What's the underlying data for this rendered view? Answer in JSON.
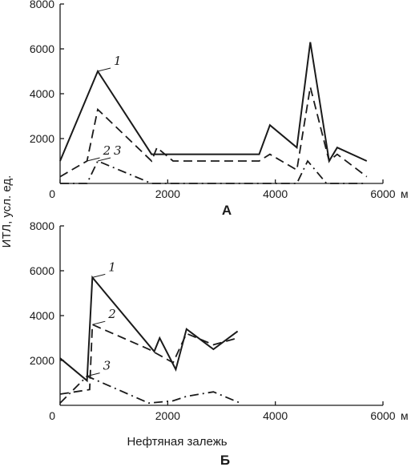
{
  "chart_data": [
    {
      "type": "line",
      "panel_label": "А",
      "ylabel": "ИТЛ, усл. ед.",
      "x_unit": "м",
      "xlim": [
        0,
        6000
      ],
      "ylim": [
        0,
        8000
      ],
      "x_ticks": [
        0,
        2000,
        4000,
        6000
      ],
      "y_ticks": [
        2000,
        4000,
        6000,
        8000
      ],
      "grid": false,
      "series": [
        {
          "name": "1",
          "style": "solid",
          "x": [
            0,
            700,
            1700,
            2100,
            3700,
            3900,
            4400,
            4650,
            5000,
            5150,
            5700
          ],
          "y": [
            1000,
            5000,
            1300,
            1300,
            1300,
            2600,
            1600,
            6300,
            1000,
            1600,
            1000
          ]
        },
        {
          "name": "2",
          "style": "dashed",
          "x": [
            0,
            500,
            700,
            1700,
            1800,
            2100,
            3700,
            3900,
            4400,
            4650,
            5000,
            5150,
            5700
          ],
          "y": [
            300,
            1000,
            3300,
            1000,
            1600,
            1000,
            1000,
            1300,
            600,
            4300,
            1000,
            1300,
            300
          ]
        },
        {
          "name": "3",
          "style": "dashdot",
          "x": [
            0,
            500,
            700,
            1700,
            4400,
            4600,
            4950,
            5700
          ],
          "y": [
            0,
            0,
            1000,
            0,
            0,
            1000,
            0,
            0
          ]
        }
      ]
    },
    {
      "type": "line",
      "panel_label": "Б",
      "xlabel": "Нефтяная залежь",
      "x_unit": "м",
      "xlim": [
        0,
        6000
      ],
      "ylim": [
        0,
        8000
      ],
      "x_ticks": [
        0,
        2000,
        4000,
        6000
      ],
      "y_ticks": [
        2000,
        4000,
        6000,
        8000
      ],
      "grid": false,
      "series": [
        {
          "name": "1",
          "style": "solid",
          "x": [
            0,
            500,
            600,
            1750,
            1850,
            2150,
            2350,
            2850,
            3300
          ],
          "y": [
            2100,
            1100,
            5700,
            2400,
            3000,
            1600,
            3400,
            2500,
            3300
          ]
        },
        {
          "name": "2",
          "style": "dashed",
          "x": [
            0,
            550,
            600,
            1650,
            2100,
            2350,
            2850,
            3300
          ],
          "y": [
            500,
            700,
            3600,
            2500,
            1900,
            3200,
            2700,
            3000
          ]
        },
        {
          "name": "3",
          "style": "dashdot",
          "x": [
            0,
            500,
            1650,
            2100,
            2350,
            2850,
            3350
          ],
          "y": [
            100,
            1300,
            100,
            200,
            400,
            600,
            100
          ]
        }
      ]
    }
  ]
}
